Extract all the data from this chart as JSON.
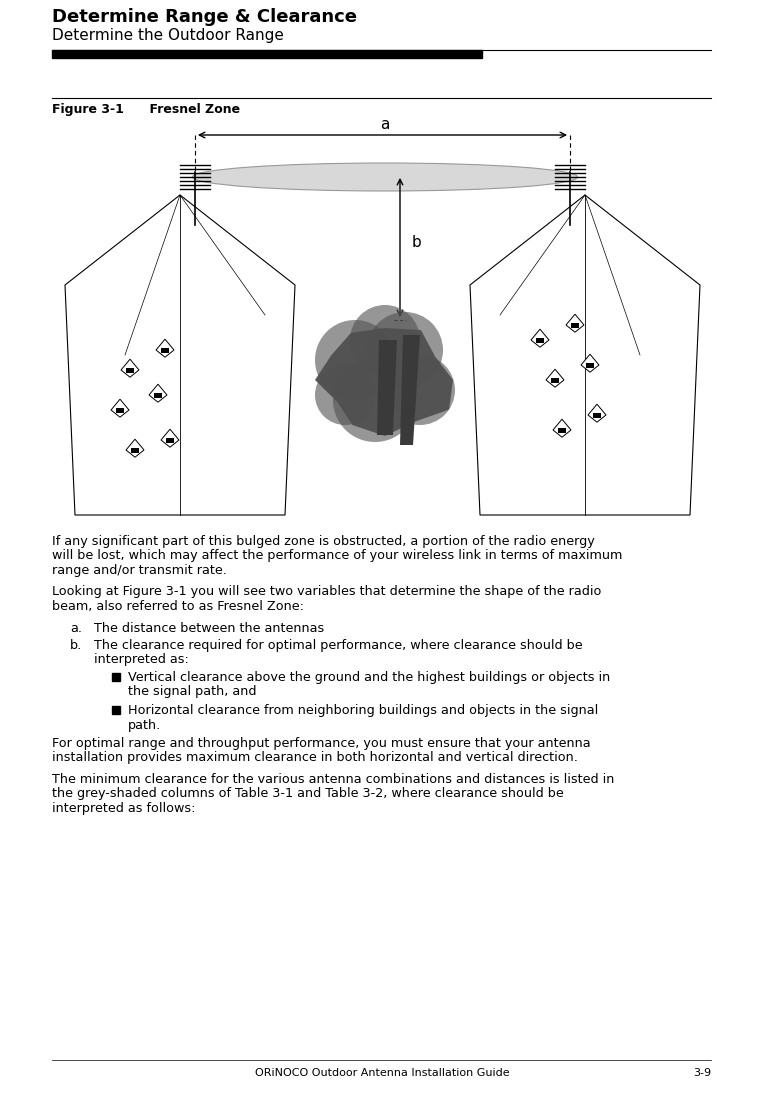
{
  "title_bold": "Determine Range & Clearance",
  "title_sub": "Determine the Outdoor Range",
  "figure_label": "Figure 3-1",
  "figure_title": "    Fresnel Zone",
  "footer_left": "ORiNOCO Outdoor Antenna Installation Guide",
  "footer_right": "3-9",
  "body_text": [
    {
      "type": "para",
      "text": "If any significant part of this bulged zone is obstructed, a portion of the radio energy will be lost, which may affect the performance of your wireless link in terms of maximum range and/or transmit rate."
    },
    {
      "type": "para",
      "text": "Looking at Figure 3-1 you will see two variables that determine the shape of the radio beam, also referred to as Fresnel Zone:"
    },
    {
      "type": "item_alpha",
      "label": "a.",
      "text": "The distance between the antennas"
    },
    {
      "type": "item_alpha",
      "label": "b.",
      "text": "The clearance required for optimal performance, where clearance should be interpreted as:"
    },
    {
      "type": "bullet",
      "text": "Vertical clearance above the ground and the highest buildings or objects in the signal path, and"
    },
    {
      "type": "bullet",
      "text": "Horizontal clearance from neighboring buildings and objects in the signal path."
    },
    {
      "type": "para",
      "text": "For optimal range and throughput performance, you must ensure that your antenna installation provides maximum clearance in both horizontal and vertical direction."
    },
    {
      "type": "para",
      "text": "The minimum clearance for the various antenna combinations and distances is listed in the grey-shaded columns of Table 3-1 and Table 3-2, where clearance should be interpreted as follows:"
    }
  ],
  "bg_color": "#ffffff",
  "text_color": "#000000"
}
